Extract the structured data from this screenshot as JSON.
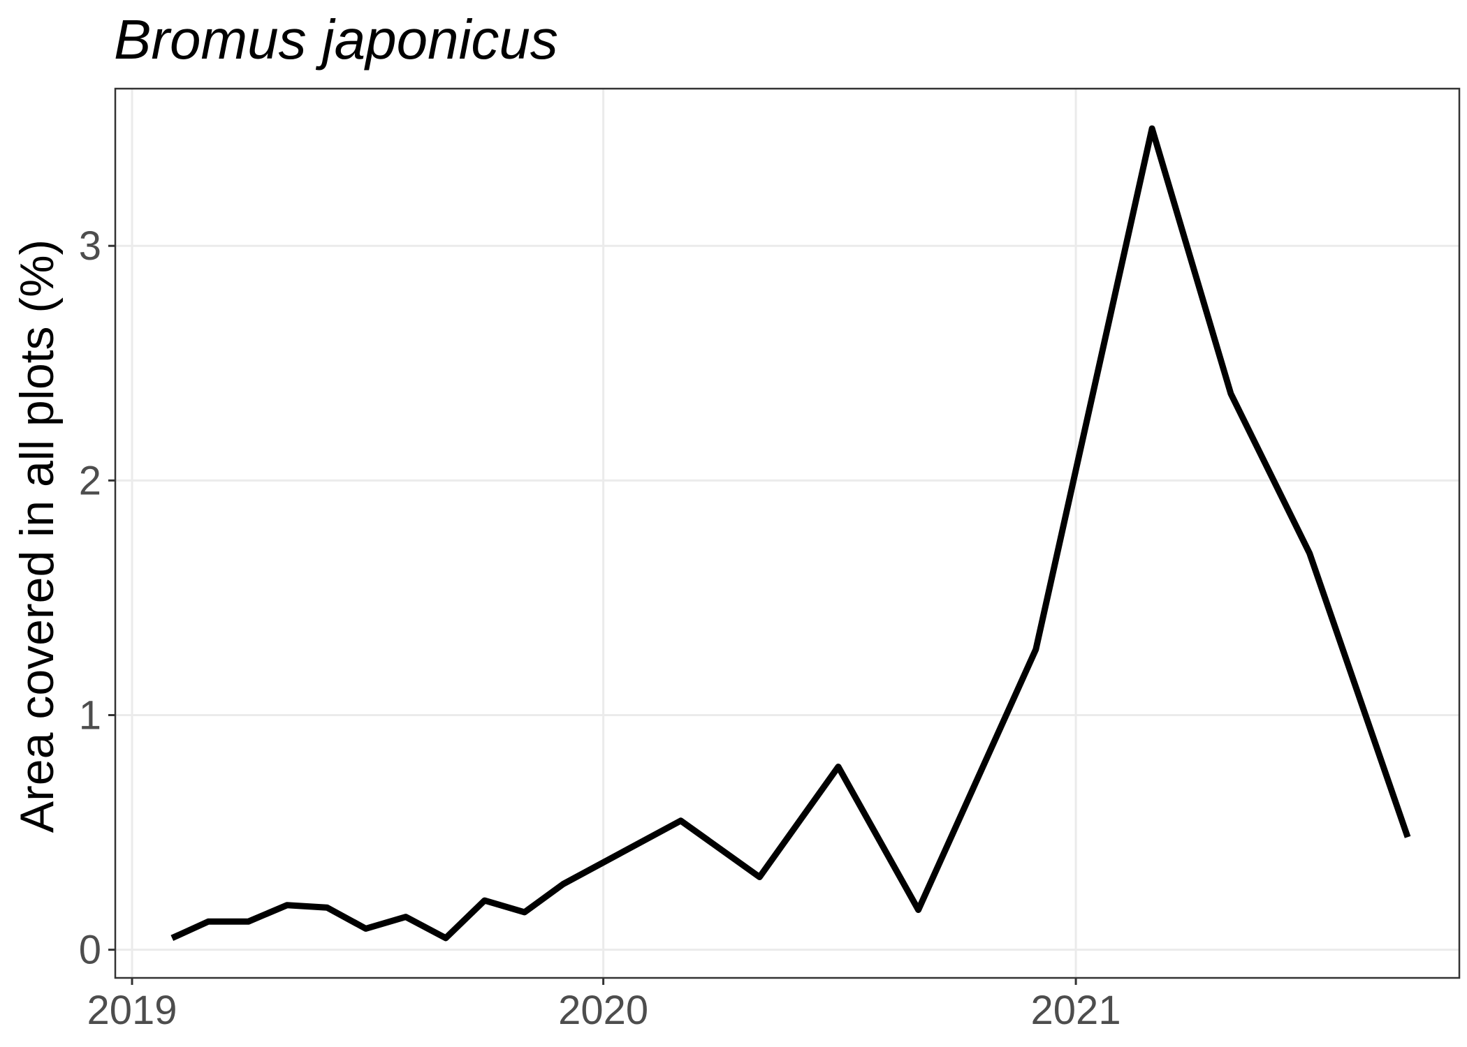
{
  "chart_data": {
    "type": "line",
    "title": "Bromus japonicus",
    "xlabel": "",
    "ylabel": "Area covered in all plots (%)",
    "x_ticks": [
      "2019",
      "2020",
      "2021"
    ],
    "y_ticks": [
      "0",
      "1",
      "2",
      "3"
    ],
    "xlim": [
      "2018-12-19",
      "2021-10-25"
    ],
    "ylim": [
      -0.12,
      3.67
    ],
    "grid": true,
    "series": [
      {
        "color": "#000000",
        "x": [
          "2019-02-01",
          "2019-03-01",
          "2019-04-01",
          "2019-05-01",
          "2019-06-01",
          "2019-07-01",
          "2019-08-01",
          "2019-09-01",
          "2019-10-01",
          "2019-11-01",
          "2019-12-01",
          "2020-03-01",
          "2020-05-01",
          "2020-07-01",
          "2020-09-01",
          "2020-12-01",
          "2021-03-01",
          "2021-05-01",
          "2021-07-01",
          "2021-09-15"
        ],
        "y": [
          0.05,
          0.12,
          0.12,
          0.19,
          0.18,
          0.09,
          0.14,
          0.05,
          0.21,
          0.16,
          0.28,
          0.55,
          0.31,
          0.78,
          0.17,
          1.28,
          3.5,
          2.37,
          1.69,
          0.48
        ]
      }
    ]
  }
}
